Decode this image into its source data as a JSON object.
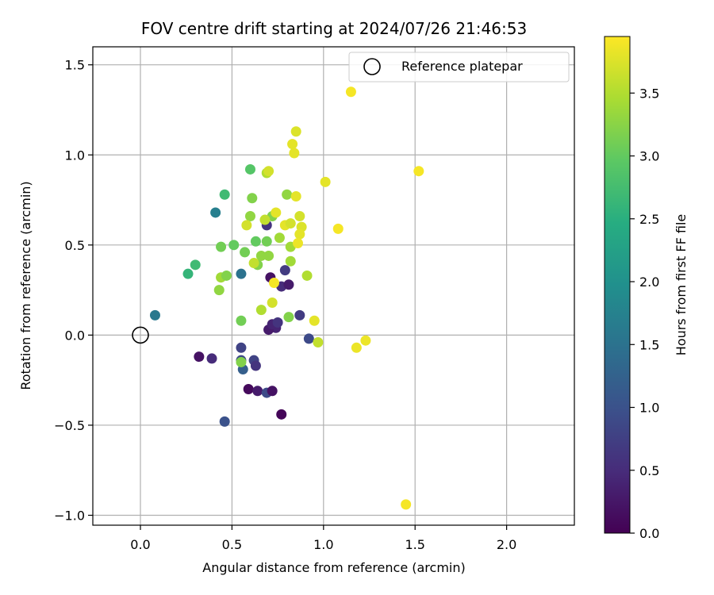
{
  "chart_data": {
    "type": "scatter",
    "title": "FOV centre drift starting at 2024/07/26 21:46:53",
    "xlabel": "Angular distance from reference (arcmin)",
    "ylabel": "Rotation from reference (arcmin)",
    "colorbar_label": "Hours from first FF file",
    "xlim": [
      -0.26,
      2.37
    ],
    "ylim": [
      -1.055,
      1.6
    ],
    "x_ticks": [
      0.0,
      0.5,
      1.0,
      1.5,
      2.0
    ],
    "x_tick_labels": [
      "0.0",
      "0.5",
      "1.0",
      "1.5",
      "2.0"
    ],
    "y_ticks": [
      -1.0,
      -0.5,
      0.0,
      0.5,
      1.0,
      1.5
    ],
    "y_tick_labels": [
      "−1.0",
      "−0.5",
      "0.0",
      "0.5",
      "1.0",
      "1.5"
    ],
    "colorbar_range": [
      0.0,
      3.95
    ],
    "colorbar_ticks": [
      0.0,
      0.5,
      1.0,
      1.5,
      2.0,
      2.5,
      3.0,
      3.5
    ],
    "colorbar_tick_labels": [
      "0.0",
      "0.5",
      "1.0",
      "1.5",
      "2.0",
      "2.5",
      "3.0",
      "3.5"
    ],
    "colormap": "viridis",
    "grid": true,
    "legend_position": "top-right",
    "reference": {
      "label": "Reference platepar",
      "x": 0.0,
      "y": 0.0
    },
    "points": [
      {
        "x": 0.32,
        "y": -0.12,
        "h": 0.2
      },
      {
        "x": 0.39,
        "y": -0.13,
        "h": 0.5
      },
      {
        "x": 0.46,
        "y": -0.48,
        "h": 1.0
      },
      {
        "x": 0.55,
        "y": -0.07,
        "h": 0.8
      },
      {
        "x": 0.55,
        "y": -0.14,
        "h": 0.9
      },
      {
        "x": 0.56,
        "y": -0.19,
        "h": 1.2
      },
      {
        "x": 0.59,
        "y": -0.3,
        "h": 0.1
      },
      {
        "x": 0.62,
        "y": -0.14,
        "h": 0.8
      },
      {
        "x": 0.63,
        "y": -0.17,
        "h": 0.6
      },
      {
        "x": 0.64,
        "y": -0.31,
        "h": 0.3
      },
      {
        "x": 0.69,
        "y": -0.32,
        "h": 0.9
      },
      {
        "x": 0.72,
        "y": -0.31,
        "h": 0.2
      },
      {
        "x": 0.77,
        "y": -0.44,
        "h": 0.05
      },
      {
        "x": 0.08,
        "y": 0.11,
        "h": 1.6
      },
      {
        "x": 0.41,
        "y": 0.68,
        "h": 1.7
      },
      {
        "x": 0.55,
        "y": 0.34,
        "h": 1.5
      },
      {
        "x": 0.69,
        "y": 0.61,
        "h": 0.6
      },
      {
        "x": 0.71,
        "y": 0.32,
        "h": 0.2
      },
      {
        "x": 0.74,
        "y": 0.04,
        "h": 0.4
      },
      {
        "x": 0.7,
        "y": 0.03,
        "h": 0.3
      },
      {
        "x": 0.72,
        "y": 0.06,
        "h": 0.4
      },
      {
        "x": 0.75,
        "y": 0.07,
        "h": 0.6
      },
      {
        "x": 0.77,
        "y": 0.27,
        "h": 0.5
      },
      {
        "x": 0.79,
        "y": 0.36,
        "h": 0.7
      },
      {
        "x": 0.81,
        "y": 0.28,
        "h": 0.3
      },
      {
        "x": 0.87,
        "y": 0.11,
        "h": 0.7
      },
      {
        "x": 0.92,
        "y": -0.02,
        "h": 0.9
      },
      {
        "x": 0.26,
        "y": 0.34,
        "h": 2.6
      },
      {
        "x": 0.3,
        "y": 0.39,
        "h": 2.7
      },
      {
        "x": 0.46,
        "y": 0.78,
        "h": 2.7
      },
      {
        "x": 0.51,
        "y": 0.5,
        "h": 3.0
      },
      {
        "x": 0.6,
        "y": 0.92,
        "h": 2.9
      },
      {
        "x": 0.44,
        "y": 0.49,
        "h": 3.1
      },
      {
        "x": 0.57,
        "y": 0.46,
        "h": 3.1
      },
      {
        "x": 0.61,
        "y": 0.76,
        "h": 3.2
      },
      {
        "x": 0.6,
        "y": 0.66,
        "h": 3.3
      },
      {
        "x": 0.63,
        "y": 0.52,
        "h": 3.0
      },
      {
        "x": 0.64,
        "y": 0.39,
        "h": 3.2
      },
      {
        "x": 0.66,
        "y": 0.44,
        "h": 3.3
      },
      {
        "x": 0.69,
        "y": 0.52,
        "h": 3.1
      },
      {
        "x": 0.7,
        "y": 0.44,
        "h": 3.3
      },
      {
        "x": 0.72,
        "y": 0.66,
        "h": 3.2
      },
      {
        "x": 0.76,
        "y": 0.54,
        "h": 3.4
      },
      {
        "x": 0.8,
        "y": 0.78,
        "h": 3.3
      },
      {
        "x": 0.82,
        "y": 0.41,
        "h": 3.4
      },
      {
        "x": 0.81,
        "y": 0.1,
        "h": 3.2
      },
      {
        "x": 0.55,
        "y": 0.08,
        "h": 3.1
      },
      {
        "x": 0.55,
        "y": -0.15,
        "h": 3.2
      },
      {
        "x": 0.43,
        "y": 0.25,
        "h": 3.3
      },
      {
        "x": 0.44,
        "y": 0.32,
        "h": 3.4
      },
      {
        "x": 0.47,
        "y": 0.33,
        "h": 3.2
      },
      {
        "x": 0.62,
        "y": 0.4,
        "h": 3.6
      },
      {
        "x": 0.66,
        "y": 0.14,
        "h": 3.5
      },
      {
        "x": 0.72,
        "y": 0.18,
        "h": 3.7
      },
      {
        "x": 0.73,
        "y": 0.29,
        "h": 3.9
      },
      {
        "x": 0.58,
        "y": 0.61,
        "h": 3.7
      },
      {
        "x": 0.68,
        "y": 0.64,
        "h": 3.6
      },
      {
        "x": 0.74,
        "y": 0.68,
        "h": 3.8
      },
      {
        "x": 0.69,
        "y": 0.9,
        "h": 3.5
      },
      {
        "x": 0.7,
        "y": 0.91,
        "h": 3.7
      },
      {
        "x": 0.79,
        "y": 0.61,
        "h": 3.8
      },
      {
        "x": 0.82,
        "y": 0.62,
        "h": 3.7
      },
      {
        "x": 0.82,
        "y": 0.49,
        "h": 3.4
      },
      {
        "x": 0.83,
        "y": 1.06,
        "h": 3.8
      },
      {
        "x": 0.84,
        "y": 1.01,
        "h": 3.8
      },
      {
        "x": 0.85,
        "y": 1.13,
        "h": 3.75
      },
      {
        "x": 0.85,
        "y": 0.77,
        "h": 3.8
      },
      {
        "x": 0.87,
        "y": 0.66,
        "h": 3.7
      },
      {
        "x": 0.88,
        "y": 0.6,
        "h": 3.75
      },
      {
        "x": 0.87,
        "y": 0.56,
        "h": 3.8
      },
      {
        "x": 0.86,
        "y": 0.51,
        "h": 3.85
      },
      {
        "x": 0.91,
        "y": 0.33,
        "h": 3.5
      },
      {
        "x": 0.95,
        "y": 0.08,
        "h": 3.8
      },
      {
        "x": 0.97,
        "y": -0.04,
        "h": 3.6
      },
      {
        "x": 1.01,
        "y": 0.85,
        "h": 3.8
      },
      {
        "x": 1.08,
        "y": 0.59,
        "h": 3.9
      },
      {
        "x": 1.15,
        "y": 1.35,
        "h": 3.9
      },
      {
        "x": 1.18,
        "y": -0.07,
        "h": 3.85
      },
      {
        "x": 1.23,
        "y": -0.03,
        "h": 3.85
      },
      {
        "x": 1.45,
        "y": -0.94,
        "h": 3.9
      },
      {
        "x": 1.52,
        "y": 0.91,
        "h": 3.9
      }
    ]
  }
}
